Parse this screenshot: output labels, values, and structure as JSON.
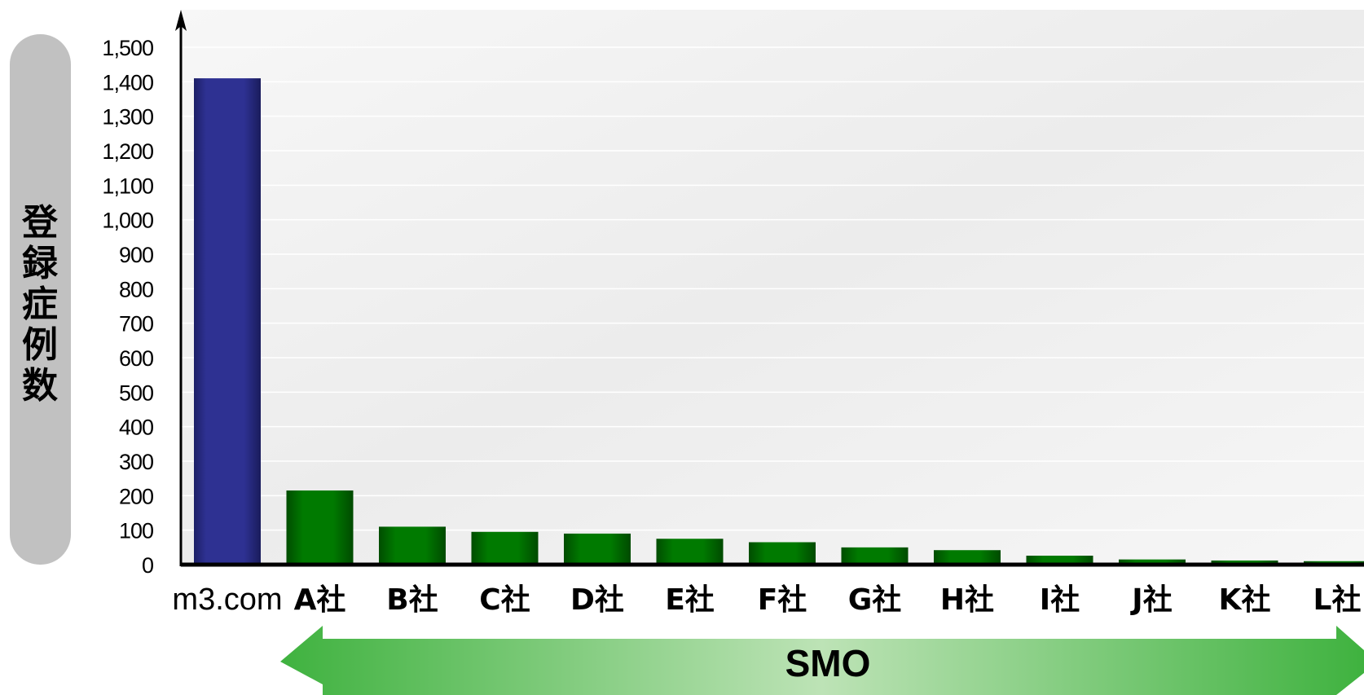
{
  "chart_data": {
    "type": "bar",
    "title": "",
    "xlabel": "",
    "ylabel": "登録症例数",
    "ylim": [
      0,
      1500
    ],
    "yticks": [
      0,
      100,
      200,
      300,
      400,
      500,
      600,
      700,
      800,
      900,
      1000,
      1100,
      1200,
      1300,
      1400,
      1500
    ],
    "ytick_labels": [
      "0",
      "100",
      "200",
      "300",
      "400",
      "500",
      "600",
      "700",
      "800",
      "900",
      "1,000",
      "1,100",
      "1,200",
      "1,300",
      "1,400",
      "1,500"
    ],
    "categories": [
      "m3.com",
      "A社",
      "B社",
      "C社",
      "D社",
      "E社",
      "F社",
      "G社",
      "H社",
      "I社",
      "J社",
      "K社",
      "L社"
    ],
    "values": [
      1410,
      215,
      110,
      95,
      90,
      75,
      65,
      50,
      42,
      26,
      15,
      12,
      10
    ],
    "colors": {
      "highlight": "#2e3192",
      "others": "#007a00"
    },
    "grid": true,
    "annotation": {
      "label": "SMO",
      "spans": [
        "A社",
        "L社"
      ],
      "color": "#4cb848"
    }
  }
}
